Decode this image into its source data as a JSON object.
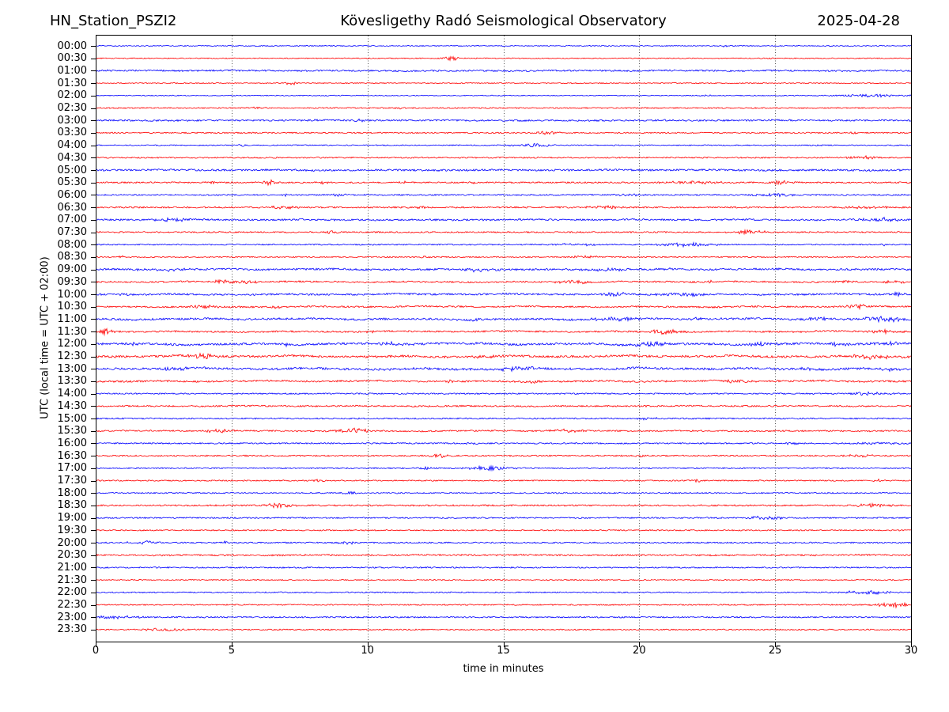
{
  "header": {
    "station": "HN_Station_PSZI2",
    "observatory": "Kövesligethy Radó Seismological Observatory",
    "date": "2025-04-28"
  },
  "chart_data": {
    "type": "line",
    "subtype": "helicorder-seismogram",
    "title": "Kövesligethy Radó Seismological Observatory",
    "station": "HN_Station_PSZI2",
    "date": "2025-04-28",
    "xlabel": "time in minutes",
    "ylabel": "UTC (local time = UTC + 02:00)",
    "xlim": [
      0,
      30
    ],
    "x_ticks": [
      0,
      5,
      10,
      15,
      20,
      25,
      30
    ],
    "row_interval_minutes": 30,
    "grid": {
      "vertical_minutes": [
        5,
        10,
        15,
        20,
        25
      ],
      "style": "dotted"
    },
    "colors": {
      "blue": "#0000ff",
      "red": "#ff0000",
      "frame": "#000000",
      "grid": "#555555"
    },
    "traces": [
      {
        "label": "00:00",
        "color": "blue",
        "noise": 0.55,
        "wander": 0,
        "events": [
          [
            23.2,
            0.3,
            1.2
          ]
        ]
      },
      {
        "label": "00:30",
        "color": "red",
        "noise": 0.6,
        "wander": 0,
        "events": [
          [
            13.1,
            0.5,
            2.8
          ],
          [
            24.8,
            0.2,
            1.0
          ]
        ]
      },
      {
        "label": "01:00",
        "color": "blue",
        "noise": 1.0,
        "wander": 0.2,
        "events": []
      },
      {
        "label": "01:30",
        "color": "red",
        "noise": 0.6,
        "wander": 0,
        "events": [
          [
            7.2,
            0.4,
            2.2
          ]
        ]
      },
      {
        "label": "02:00",
        "color": "blue",
        "noise": 0.55,
        "wander": 0,
        "events": [
          [
            22.5,
            0.3,
            0.8
          ],
          [
            28.7,
            2.6,
            1.6
          ]
        ]
      },
      {
        "label": "02:30",
        "color": "red",
        "noise": 0.75,
        "wander": 0,
        "events": [
          [
            5.8,
            0.4,
            1.0
          ],
          [
            11.2,
            0.3,
            0.9
          ]
        ]
      },
      {
        "label": "03:00",
        "color": "blue",
        "noise": 1.05,
        "wander": 0.15,
        "events": [
          [
            9.7,
            0.3,
            1.4
          ]
        ]
      },
      {
        "label": "03:30",
        "color": "red",
        "noise": 0.8,
        "wander": 0,
        "events": [
          [
            16.6,
            0.7,
            1.8
          ],
          [
            27.9,
            0.3,
            1.0
          ]
        ]
      },
      {
        "label": "04:00",
        "color": "blue",
        "noise": 0.65,
        "wander": 0,
        "events": [
          [
            5.4,
            0.3,
            1.6
          ],
          [
            16.1,
            1.3,
            1.9
          ],
          [
            26.6,
            0.25,
            1.3
          ]
        ]
      },
      {
        "label": "04:30",
        "color": "red",
        "noise": 0.8,
        "wander": 0,
        "events": [
          [
            28.2,
            0.9,
            2.3
          ]
        ]
      },
      {
        "label": "05:00",
        "color": "blue",
        "noise": 1.15,
        "wander": 0.2,
        "events": []
      },
      {
        "label": "05:30",
        "color": "red",
        "noise": 0.9,
        "wander": 0,
        "events": [
          [
            4.2,
            0.3,
            1.8
          ],
          [
            6.4,
            0.6,
            2.6
          ],
          [
            8.4,
            0.4,
            1.8
          ],
          [
            11.4,
            0.3,
            2.0
          ],
          [
            13.9,
            0.3,
            1.2
          ],
          [
            22.0,
            2.0,
            1.6
          ],
          [
            25.2,
            0.8,
            1.9
          ]
        ]
      },
      {
        "label": "06:00",
        "color": "blue",
        "noise": 0.85,
        "wander": 0,
        "events": [
          [
            7.0,
            0.4,
            1.3
          ],
          [
            9.0,
            0.5,
            1.6
          ],
          [
            19.5,
            1.0,
            1.3
          ],
          [
            24.9,
            1.4,
            1.6
          ]
        ]
      },
      {
        "label": "06:30",
        "color": "red",
        "noise": 0.95,
        "wander": 0,
        "events": [
          [
            6.9,
            1.0,
            1.5
          ],
          [
            12.0,
            0.4,
            1.2
          ],
          [
            18.7,
            1.0,
            1.7
          ],
          [
            28.4,
            1.4,
            1.5
          ]
        ]
      },
      {
        "label": "07:00",
        "color": "blue",
        "noise": 1.05,
        "wander": 0.2,
        "events": [
          [
            2.9,
            1.2,
            1.9
          ],
          [
            28.9,
            1.0,
            2.6
          ]
        ]
      },
      {
        "label": "07:30",
        "color": "red",
        "noise": 0.85,
        "wander": 0,
        "events": [
          [
            8.7,
            0.5,
            1.5
          ],
          [
            24.0,
            1.2,
            2.2
          ]
        ]
      },
      {
        "label": "08:00",
        "color": "blue",
        "noise": 0.75,
        "wander": 0,
        "events": [
          [
            17.6,
            1.8,
            1.2
          ],
          [
            21.7,
            1.5,
            2.4
          ],
          [
            29.0,
            0.4,
            1.2
          ]
        ]
      },
      {
        "label": "08:30",
        "color": "red",
        "noise": 0.75,
        "wander": 0,
        "events": [
          [
            1.0,
            0.3,
            1.3
          ],
          [
            12.1,
            0.3,
            1.1
          ],
          [
            18.0,
            0.9,
            1.3
          ]
        ]
      },
      {
        "label": "09:00",
        "color": "blue",
        "noise": 1.15,
        "wander": 0.35,
        "events": [
          [
            2.6,
            1.4,
            1.9
          ],
          [
            14.1,
            1.0,
            1.8
          ],
          [
            19.0,
            1.0,
            1.6
          ],
          [
            21.1,
            0.5,
            1.3
          ]
        ]
      },
      {
        "label": "09:30",
        "color": "red",
        "noise": 0.95,
        "wander": 0.3,
        "events": [
          [
            5.0,
            1.5,
            2.1
          ],
          [
            17.5,
            1.0,
            2.2
          ],
          [
            22.6,
            0.4,
            1.3
          ],
          [
            27.6,
            0.5,
            1.5
          ],
          [
            29.4,
            0.6,
            1.7
          ]
        ]
      },
      {
        "label": "10:00",
        "color": "blue",
        "noise": 1.1,
        "wander": 0.35,
        "events": [
          [
            1.0,
            0.4,
            1.3
          ],
          [
            19.1,
            0.7,
            2.4
          ],
          [
            21.5,
            1.5,
            1.7
          ],
          [
            29.5,
            0.5,
            1.8
          ]
        ]
      },
      {
        "label": "10:30",
        "color": "red",
        "noise": 1.0,
        "wander": 0.3,
        "events": [
          [
            4.1,
            1.0,
            1.7
          ],
          [
            6.6,
            0.4,
            1.5
          ],
          [
            28.0,
            0.7,
            2.6
          ]
        ]
      },
      {
        "label": "11:00",
        "color": "blue",
        "noise": 1.2,
        "wander": 0.45,
        "events": [
          [
            13.9,
            0.4,
            1.7
          ],
          [
            19.0,
            1.5,
            2.2
          ],
          [
            22.1,
            0.5,
            1.6
          ],
          [
            26.6,
            1.0,
            1.8
          ],
          [
            28.9,
            1.5,
            2.8
          ]
        ]
      },
      {
        "label": "11:30",
        "color": "red",
        "noise": 1.0,
        "wander": 0.3,
        "events": [
          [
            0.35,
            0.5,
            3.1
          ],
          [
            10.1,
            0.4,
            1.5
          ],
          [
            21.0,
            1.0,
            2.7
          ],
          [
            26.6,
            0.4,
            1.3
          ],
          [
            29.1,
            1.0,
            2.0
          ]
        ]
      },
      {
        "label": "12:00",
        "color": "blue",
        "noise": 1.35,
        "wander": 0.55,
        "events": [
          [
            1.2,
            0.5,
            1.7
          ],
          [
            7.0,
            0.5,
            1.5
          ],
          [
            10.9,
            0.7,
            2.0
          ],
          [
            20.5,
            1.5,
            2.0
          ],
          [
            24.6,
            1.0,
            1.8
          ],
          [
            27.2,
            1.0,
            1.8
          ],
          [
            29.2,
            0.9,
            2.0
          ]
        ]
      },
      {
        "label": "12:30",
        "color": "red",
        "noise": 1.3,
        "wander": 0.5,
        "events": [
          [
            3.9,
            0.9,
            2.9
          ],
          [
            14.6,
            1.0,
            1.7
          ],
          [
            28.6,
            1.4,
            2.2
          ]
        ]
      },
      {
        "label": "13:00",
        "color": "blue",
        "noise": 1.35,
        "wander": 0.55,
        "events": [
          [
            3.0,
            0.9,
            2.3
          ],
          [
            15.6,
            1.1,
            2.7
          ],
          [
            26.1,
            0.5,
            1.6
          ],
          [
            29.2,
            0.6,
            2.0
          ]
        ]
      },
      {
        "label": "13:30",
        "color": "red",
        "noise": 1.1,
        "wander": 0.35,
        "events": [
          [
            13.1,
            0.4,
            1.6
          ],
          [
            16.1,
            0.4,
            1.6
          ],
          [
            23.6,
            1.0,
            1.8
          ]
        ]
      },
      {
        "label": "14:00",
        "color": "blue",
        "noise": 0.85,
        "wander": 0,
        "events": [
          [
            28.2,
            1.8,
            1.7
          ]
        ]
      },
      {
        "label": "14:30",
        "color": "red",
        "noise": 0.95,
        "wander": 0.15,
        "events": []
      },
      {
        "label": "15:00",
        "color": "blue",
        "noise": 0.85,
        "wander": 0,
        "events": [
          [
            20.3,
            0.8,
            1.3
          ]
        ]
      },
      {
        "label": "15:30",
        "color": "red",
        "noise": 0.9,
        "wander": 0.2,
        "events": [
          [
            4.6,
            1.5,
            1.8
          ],
          [
            9.4,
            1.0,
            3.2
          ],
          [
            17.3,
            1.0,
            2.2
          ]
        ]
      },
      {
        "label": "16:00",
        "color": "blue",
        "noise": 0.85,
        "wander": 0,
        "events": [
          [
            13.9,
            0.4,
            1.3
          ],
          [
            25.6,
            0.4,
            1.3
          ],
          [
            28.8,
            1.4,
            1.6
          ]
        ]
      },
      {
        "label": "16:30",
        "color": "red",
        "noise": 0.85,
        "wander": 0,
        "events": [
          [
            12.6,
            0.5,
            2.5
          ],
          [
            20.1,
            0.4,
            1.3
          ],
          [
            28.1,
            1.0,
            1.4
          ]
        ]
      },
      {
        "label": "17:00",
        "color": "blue",
        "noise": 0.75,
        "wander": 0,
        "events": [
          [
            12.2,
            0.4,
            1.3
          ],
          [
            14.5,
            1.2,
            2.7
          ]
        ]
      },
      {
        "label": "17:30",
        "color": "red",
        "noise": 0.75,
        "wander": 0,
        "events": [
          [
            8.3,
            0.5,
            2.0
          ],
          [
            22.1,
            0.4,
            1.6
          ],
          [
            28.8,
            0.4,
            1.3
          ]
        ]
      },
      {
        "label": "18:00",
        "color": "blue",
        "noise": 0.75,
        "wander": 0,
        "events": [
          [
            9.4,
            0.5,
            1.6
          ]
        ]
      },
      {
        "label": "18:30",
        "color": "red",
        "noise": 0.95,
        "wander": 0,
        "events": [
          [
            6.7,
            0.8,
            2.7
          ],
          [
            28.6,
            1.4,
            1.8
          ]
        ]
      },
      {
        "label": "19:00",
        "color": "blue",
        "noise": 0.85,
        "wander": 0,
        "events": [
          [
            24.6,
            1.2,
            2.0
          ]
        ]
      },
      {
        "label": "19:30",
        "color": "red",
        "noise": 0.75,
        "wander": 0,
        "events": []
      },
      {
        "label": "20:00",
        "color": "blue",
        "noise": 0.85,
        "wander": 0,
        "events": [
          [
            1.8,
            1.0,
            1.8
          ],
          [
            4.7,
            0.3,
            1.3
          ],
          [
            9.3,
            0.6,
            1.6
          ]
        ]
      },
      {
        "label": "20:30",
        "color": "red",
        "noise": 0.95,
        "wander": 0.15,
        "events": []
      },
      {
        "label": "21:00",
        "color": "blue",
        "noise": 0.8,
        "wander": 0,
        "events": []
      },
      {
        "label": "21:30",
        "color": "red",
        "noise": 0.65,
        "wander": 0,
        "events": []
      },
      {
        "label": "22:00",
        "color": "blue",
        "noise": 0.75,
        "wander": 0,
        "events": [
          [
            28.3,
            1.6,
            2.2
          ]
        ]
      },
      {
        "label": "22:30",
        "color": "red",
        "noise": 0.75,
        "wander": 0,
        "events": [
          [
            29.3,
            0.9,
            3.3
          ]
        ]
      },
      {
        "label": "23:00",
        "color": "blue",
        "noise": 0.85,
        "wander": 0,
        "events": [
          [
            0.7,
            1.4,
            2.0
          ]
        ]
      },
      {
        "label": "23:30",
        "color": "red",
        "noise": 0.75,
        "wander": 0,
        "events": [
          [
            2.6,
            1.3,
            2.0
          ]
        ]
      }
    ]
  }
}
